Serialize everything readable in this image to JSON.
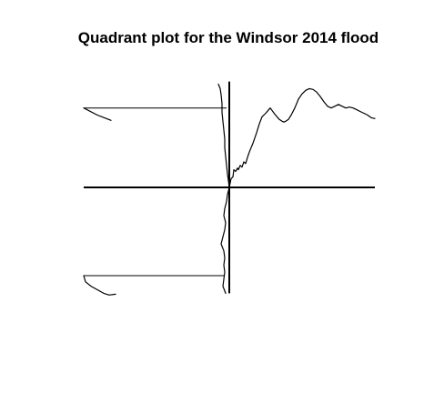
{
  "chart_data": {
    "type": "line",
    "title": "Quadrant plot for the Windsor 2014 flood",
    "xlabel": "",
    "ylabel": "",
    "grid": false,
    "legend": "none",
    "xlim": [
      -1.6,
      1.6
    ],
    "ylim": [
      -1.2,
      1.2
    ],
    "colors": {
      "line": "#000000",
      "background": "#ffffff"
    },
    "panels": [
      {
        "name": "",
        "quadrant": "upper-right",
        "x": [
          0.0,
          0.02,
          0.04,
          0.05,
          0.07,
          0.09,
          0.1,
          0.12,
          0.14,
          0.16,
          0.18,
          0.2,
          0.22,
          0.24,
          0.26,
          0.28,
          0.3,
          0.33,
          0.36,
          0.4,
          0.45,
          0.5,
          0.55,
          0.58,
          0.6,
          0.62,
          0.65,
          0.68,
          0.72,
          0.76,
          0.8,
          0.84,
          0.88,
          0.92,
          0.96,
          1.0,
          1.04,
          1.08,
          1.12,
          1.16,
          1.2,
          1.24,
          1.28,
          1.32,
          1.36,
          1.4,
          1.44,
          1.48,
          1.52,
          1.56,
          1.6
        ],
        "y": [
          0.0,
          0.1,
          0.12,
          0.2,
          0.18,
          0.22,
          0.2,
          0.25,
          0.23,
          0.29,
          0.27,
          0.34,
          0.4,
          0.45,
          0.5,
          0.56,
          0.62,
          0.72,
          0.8,
          0.84,
          0.9,
          0.83,
          0.77,
          0.75,
          0.74,
          0.75,
          0.77,
          0.82,
          0.9,
          1.0,
          1.06,
          1.1,
          1.12,
          1.11,
          1.08,
          1.03,
          0.97,
          0.92,
          0.9,
          0.92,
          0.94,
          0.92,
          0.9,
          0.91,
          0.9,
          0.88,
          0.86,
          0.84,
          0.82,
          0.79,
          0.78
        ]
      },
      {
        "name": "",
        "quadrant": "upper-left",
        "x": [
          0.0,
          -0.01,
          -0.02,
          -0.03,
          -0.04,
          -0.05,
          -0.05,
          -0.06,
          -0.07,
          -0.08,
          -0.08,
          -0.09,
          -0.1,
          -0.12
        ],
        "y": [
          0.0,
          0.08,
          0.15,
          0.25,
          0.35,
          0.45,
          0.55,
          0.65,
          0.75,
          0.85,
          0.95,
          1.05,
          1.12,
          1.17
        ]
      },
      {
        "name": "",
        "quadrant": "lower-left",
        "x": [
          0.0,
          -0.02,
          -0.03,
          -0.05,
          -0.06,
          -0.04,
          -0.05,
          -0.07,
          -0.09,
          -0.06,
          -0.05,
          -0.06,
          -0.05,
          -0.06,
          -0.07,
          -0.04
        ],
        "y": [
          0.0,
          -0.08,
          -0.16,
          -0.24,
          -0.32,
          -0.4,
          -0.48,
          -0.56,
          -0.64,
          -0.72,
          -0.8,
          -0.88,
          -0.96,
          -1.04,
          -1.12,
          -1.2
        ]
      },
      {
        "name": "",
        "quadrant": "far-upper",
        "x": [
          -1.6,
          -1.45,
          -1.3
        ],
        "y": [
          0.9,
          0.82,
          0.76
        ]
      },
      {
        "name": "",
        "quadrant": "far-lower",
        "x": [
          -1.6,
          -1.58,
          -1.52,
          -1.45,
          -1.38,
          -1.32,
          -1.25
        ],
        "y": [
          -1.0,
          -1.07,
          -1.12,
          -1.16,
          -1.2,
          -1.22,
          -1.21
        ]
      }
    ],
    "connectors": [
      {
        "name": "",
        "from": [
          -1.6,
          0.9
        ],
        "to": [
          -0.03,
          0.9
        ]
      },
      {
        "name": "",
        "from": [
          -1.6,
          -1.0
        ],
        "to": [
          -0.05,
          -1.0
        ]
      }
    ]
  }
}
